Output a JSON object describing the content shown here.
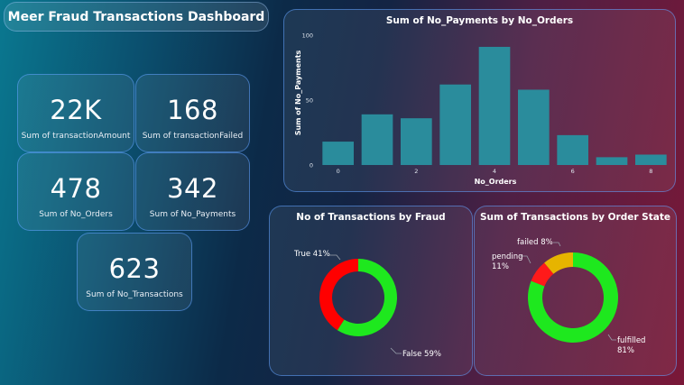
{
  "dashboard": {
    "title": "Meer Fraud Transactions Dashboard"
  },
  "kpis": [
    {
      "value": "22K",
      "label": "Sum of transactionAmount"
    },
    {
      "value": "168",
      "label": "Sum of transactionFailed"
    },
    {
      "value": "478",
      "label": "Sum of No_Orders"
    },
    {
      "value": "342",
      "label": "Sum of No_Payments"
    },
    {
      "value": "623",
      "label": "Sum of No_Transactions"
    }
  ],
  "colors": {
    "bar": "#2a8c9c",
    "true": "#ff0000",
    "false": "#1ee81e",
    "fulfilled": "#1ee81e",
    "pending": "#e6b400",
    "failed": "#ff1a1a"
  },
  "chart_data": [
    {
      "type": "bar",
      "title": "Sum of No_Payments by No_Orders",
      "xlabel": "No_Orders",
      "ylabel": "Sum of No_Payments",
      "x": [
        0,
        1,
        2,
        3,
        4,
        5,
        6,
        7,
        8
      ],
      "values": [
        18,
        39,
        36,
        62,
        91,
        58,
        23,
        6,
        8
      ],
      "xticks": [
        0,
        2,
        4,
        6,
        8
      ],
      "yticks": [
        0,
        50,
        100
      ],
      "ylim": [
        0,
        100
      ]
    },
    {
      "type": "pie",
      "title": "No of Transactions by Fraud",
      "labels": [
        "True",
        "False"
      ],
      "values": [
        41,
        59
      ],
      "value_labels": [
        "41%",
        "59%"
      ]
    },
    {
      "type": "pie",
      "title": "Sum of Transactions by Order State",
      "labels": [
        "failed",
        "pending",
        "fulfilled"
      ],
      "values": [
        8,
        11,
        81
      ],
      "value_labels": [
        "8%",
        "11%",
        "81%"
      ]
    }
  ]
}
